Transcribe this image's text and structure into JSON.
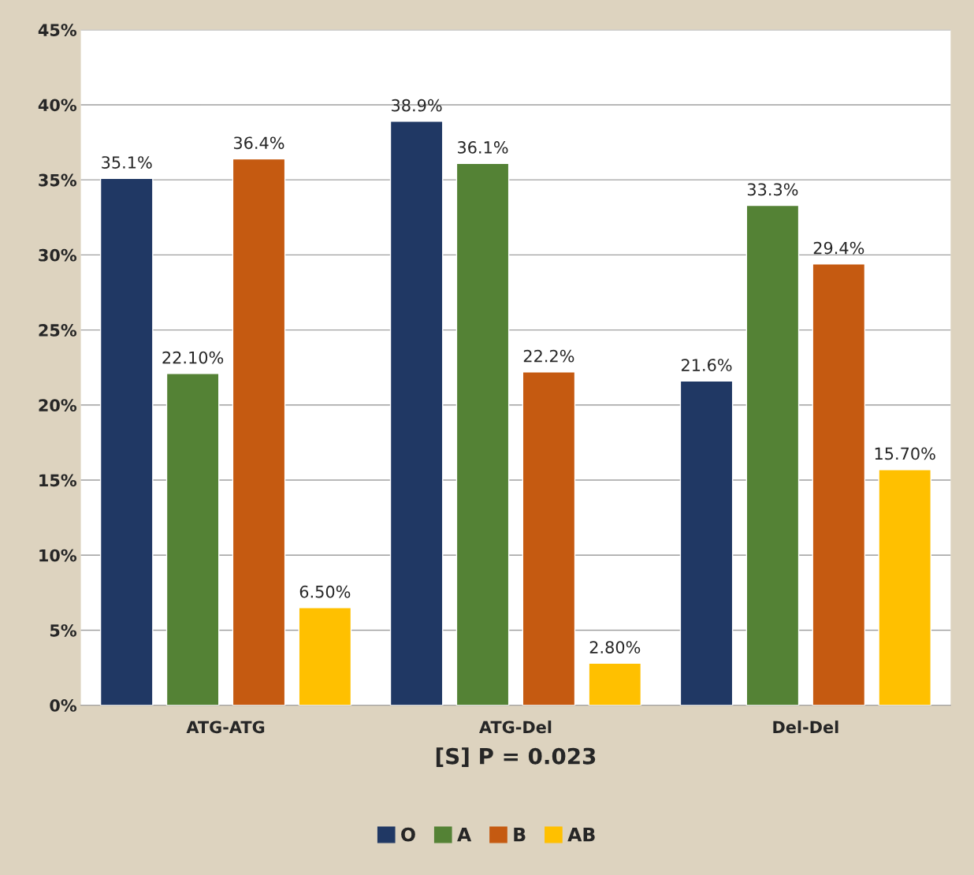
{
  "chart_data": {
    "type": "bar",
    "categories": [
      "ATG-ATG",
      "ATG-Del",
      "Del-Del"
    ],
    "xlabel": "[S] P = 0.023",
    "series": [
      {
        "name": "O",
        "color": "#203864",
        "values": [
          35.1,
          38.9,
          21.6
        ],
        "value_labels": [
          "35.1%",
          "38.9%",
          "21.6%"
        ]
      },
      {
        "name": "A",
        "color": "#548235",
        "values": [
          22.1,
          36.1,
          33.3
        ],
        "value_labels": [
          "22.10%",
          "36.1%",
          "33.3%"
        ]
      },
      {
        "name": "B",
        "color": "#c55a11",
        "values": [
          36.4,
          22.2,
          29.4
        ],
        "value_labels": [
          "36.4%",
          "22.2%",
          "29.4%"
        ]
      },
      {
        "name": "AB",
        "color": "#ffc000",
        "values": [
          6.5,
          2.8,
          15.7
        ],
        "value_labels": [
          "6.50%",
          "2.80%",
          "15.70%"
        ]
      }
    ],
    "ylim": [
      0,
      45
    ],
    "yticks": [
      {
        "value": 0,
        "label": "0%"
      },
      {
        "value": 5,
        "label": "5%"
      },
      {
        "value": 10,
        "label": "10%"
      },
      {
        "value": 15,
        "label": "15%"
      },
      {
        "value": 20,
        "label": "20%"
      },
      {
        "value": 25,
        "label": "25%"
      },
      {
        "value": 30,
        "label": "30%"
      },
      {
        "value": 35,
        "label": "35%"
      },
      {
        "value": 40,
        "label": "40%"
      },
      {
        "value": 45,
        "label": "45%"
      }
    ],
    "grid": "y",
    "legend": "bottom"
  }
}
